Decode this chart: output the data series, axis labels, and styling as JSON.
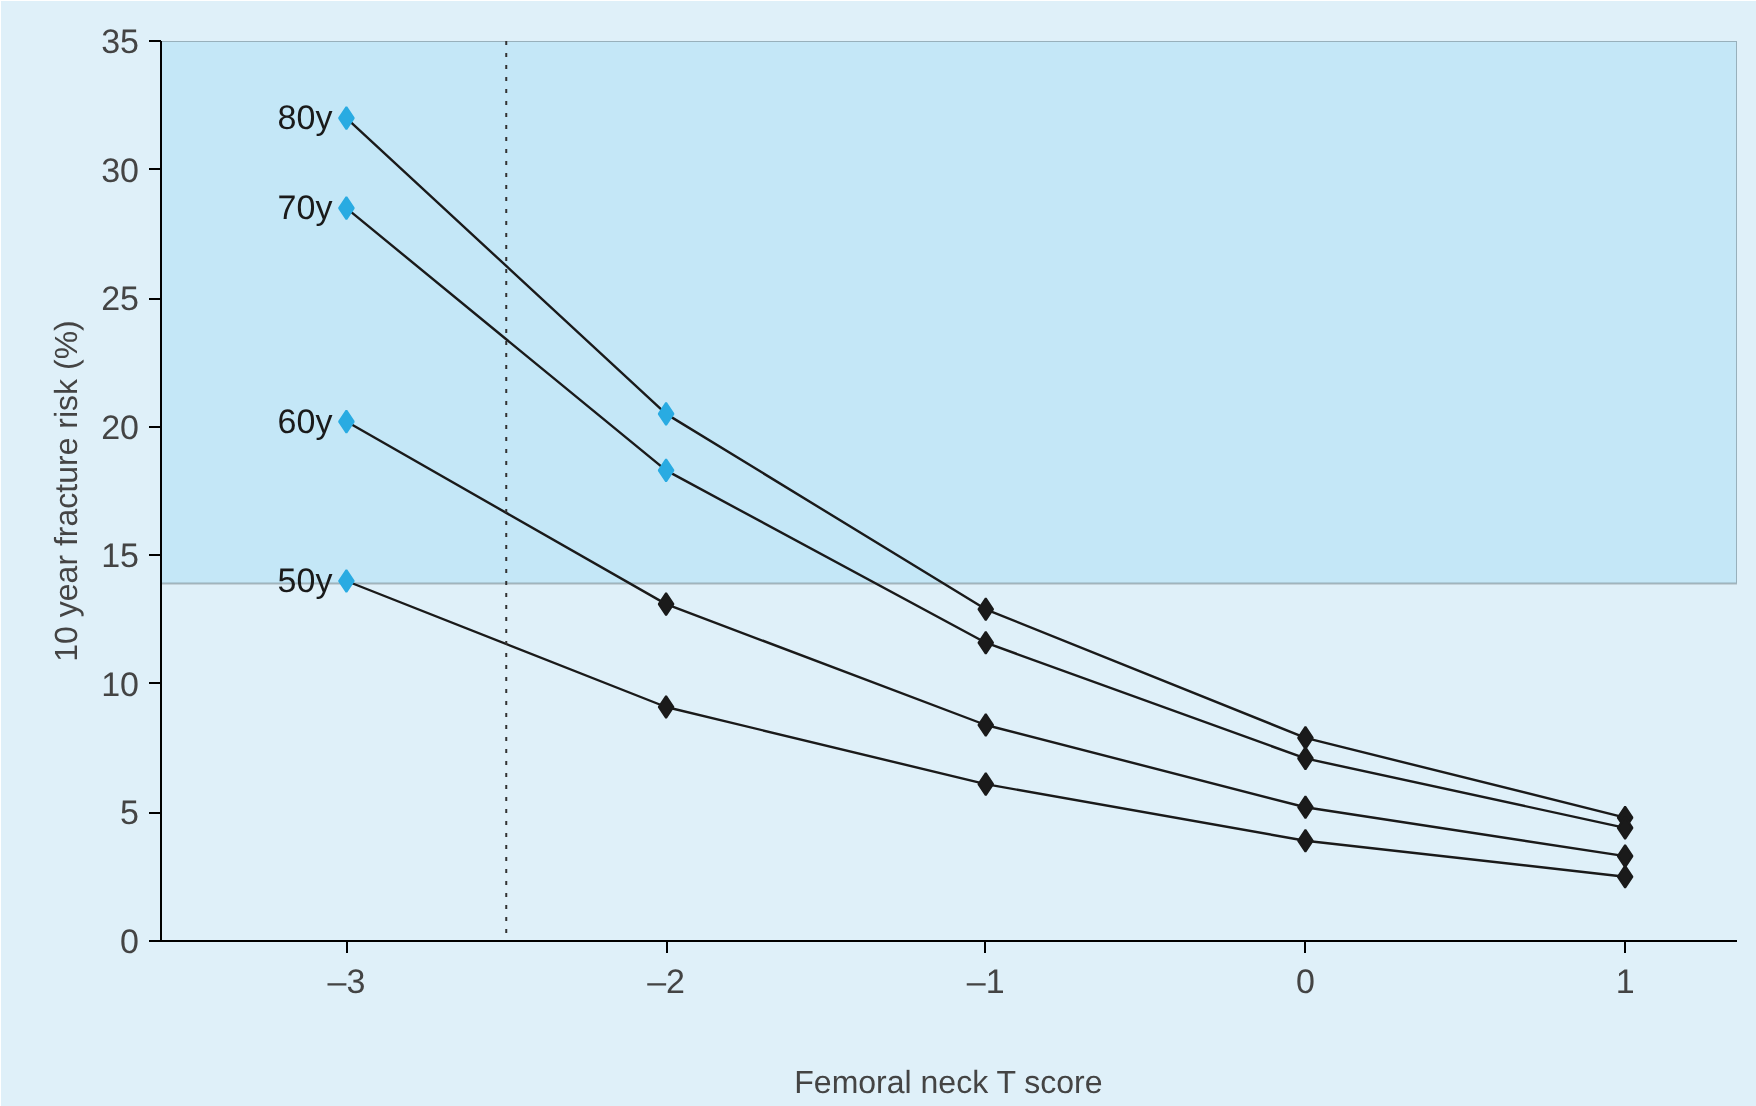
{
  "chart_data": {
    "type": "line",
    "xlabel": "Femoral neck T score",
    "ylabel": "10 year fracture risk (%)",
    "x": [
      -3,
      -2,
      -1,
      0,
      1
    ],
    "series": [
      {
        "name": "80y",
        "color": "#1a1a1a",
        "colors": [
          "#29abe2",
          "#29abe2",
          "#1a1a1a",
          "#1a1a1a",
          "#1a1a1a"
        ],
        "values": [
          32.0,
          20.5,
          12.9,
          7.9,
          4.8
        ]
      },
      {
        "name": "70y",
        "color": "#1a1a1a",
        "colors": [
          "#29abe2",
          "#29abe2",
          "#1a1a1a",
          "#1a1a1a",
          "#1a1a1a"
        ],
        "values": [
          28.5,
          18.3,
          11.6,
          7.1,
          4.4
        ]
      },
      {
        "name": "60y",
        "color": "#1a1a1a",
        "colors": [
          "#29abe2",
          "#1a1a1a",
          "#1a1a1a",
          "#1a1a1a",
          "#1a1a1a"
        ],
        "values": [
          20.2,
          13.1,
          8.4,
          5.2,
          3.3
        ]
      },
      {
        "name": "50y",
        "color": "#1a1a1a",
        "colors": [
          "#29abe2",
          "#1a1a1a",
          "#1a1a1a",
          "#1a1a1a",
          "#1a1a1a"
        ],
        "values": [
          14.0,
          9.1,
          6.1,
          3.9,
          2.5
        ]
      }
    ],
    "xlim": [
      -3.58,
      1.35
    ],
    "ylim": [
      0,
      35
    ],
    "xticks": [
      {
        "value": -3,
        "label": "–3"
      },
      {
        "value": -2,
        "label": "–2"
      },
      {
        "value": -1,
        "label": "–1"
      },
      0,
      1
    ],
    "yticks": [
      0,
      5,
      10,
      15,
      20,
      25,
      30,
      35
    ],
    "bands": [
      {
        "axis": "y",
        "from": 13.9,
        "to": 35,
        "color": "#c4e7f7"
      }
    ],
    "ref_lines": [
      {
        "axis": "x",
        "value": -2.5,
        "line_style": "dotted",
        "color": "#333333"
      }
    ],
    "legend": "left",
    "marker": "diamond",
    "line_style": "solid"
  }
}
